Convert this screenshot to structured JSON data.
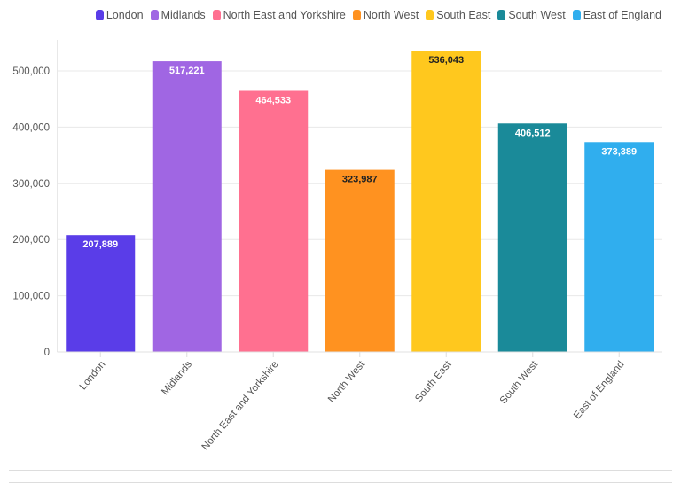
{
  "chart_data": {
    "type": "bar",
    "categories": [
      "London",
      "Midlands",
      "North East and Yorkshire",
      "North West",
      "South East",
      "South West",
      "East of England"
    ],
    "values": [
      207889,
      517221,
      464533,
      323987,
      536043,
      406512,
      373389
    ],
    "data_labels": [
      "207,889",
      "517,221",
      "464,533",
      "323,987",
      "536,043",
      "406,512",
      "373,389"
    ],
    "colors": [
      "#5a3de8",
      "#a066e3",
      "#ff7090",
      "#ff9220",
      "#ffc81e",
      "#1a8a99",
      "#30aeee"
    ],
    "label_colors": [
      "#ffffff",
      "#ffffff",
      "#ffffff",
      "#222222",
      "#222222",
      "#ffffff",
      "#ffffff"
    ],
    "ylim": [
      0,
      550000
    ],
    "yticks": [
      0,
      100000,
      200000,
      300000,
      400000,
      500000
    ],
    "ytick_labels": [
      "0",
      "100,000",
      "200,000",
      "300,000",
      "400,000",
      "500,000"
    ],
    "grid": true,
    "legend": "top-right",
    "xlabel": "",
    "ylabel": "",
    "title": ""
  }
}
